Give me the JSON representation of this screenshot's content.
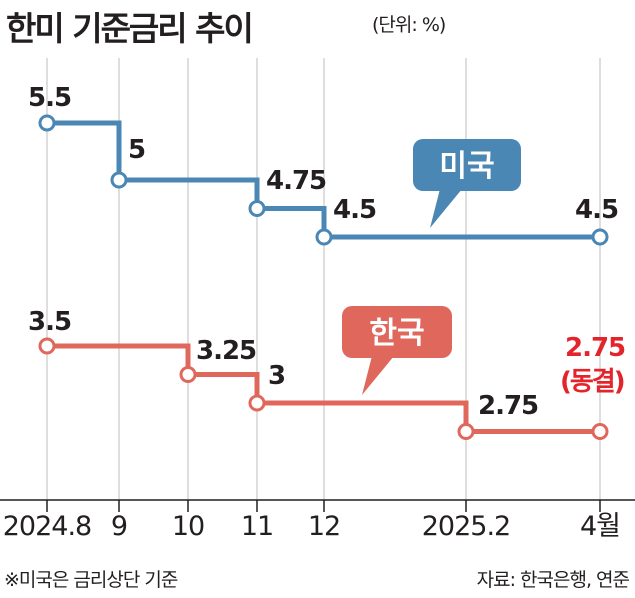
{
  "header": {
    "title": "한미 기준금리 추이",
    "unit": "(단위: %)"
  },
  "footer": {
    "note": "※미국은 금리상단 기준",
    "source": "자료: 한국은행, 연준"
  },
  "colors": {
    "us": "#4a87b5",
    "korea": "#e0675c",
    "korea_highlight": "#e3242b",
    "axis": "#231f20",
    "grid": "#c8c8c8"
  },
  "chart_data": {
    "type": "line",
    "step": true,
    "x_ticks": [
      "2024.8",
      "9",
      "10",
      "11",
      "12",
      "2025.2",
      "4월"
    ],
    "grid": true,
    "series": [
      {
        "name": "미국",
        "label_key": "us",
        "points": [
          {
            "x": "2024.8",
            "y": 5.5,
            "label": "5.5"
          },
          {
            "x": "9",
            "y": 5.0,
            "label": "5"
          },
          {
            "x": "11",
            "y": 4.75,
            "label": "4.75"
          },
          {
            "x": "12",
            "y": 4.5,
            "label": "4.5"
          },
          {
            "x": "4월",
            "y": 4.5,
            "label": "4.5"
          }
        ]
      },
      {
        "name": "한국",
        "label_key": "korea",
        "points": [
          {
            "x": "2024.8",
            "y": 3.5,
            "label": "3.5"
          },
          {
            "x": "10",
            "y": 3.25,
            "label": "3.25"
          },
          {
            "x": "11",
            "y": 3.0,
            "label": "3"
          },
          {
            "x": "2025.2",
            "y": 2.75,
            "label": "2.75"
          },
          {
            "x": "4월",
            "y": 2.75,
            "label": "2.75",
            "note": "(동결)"
          }
        ]
      }
    ]
  }
}
